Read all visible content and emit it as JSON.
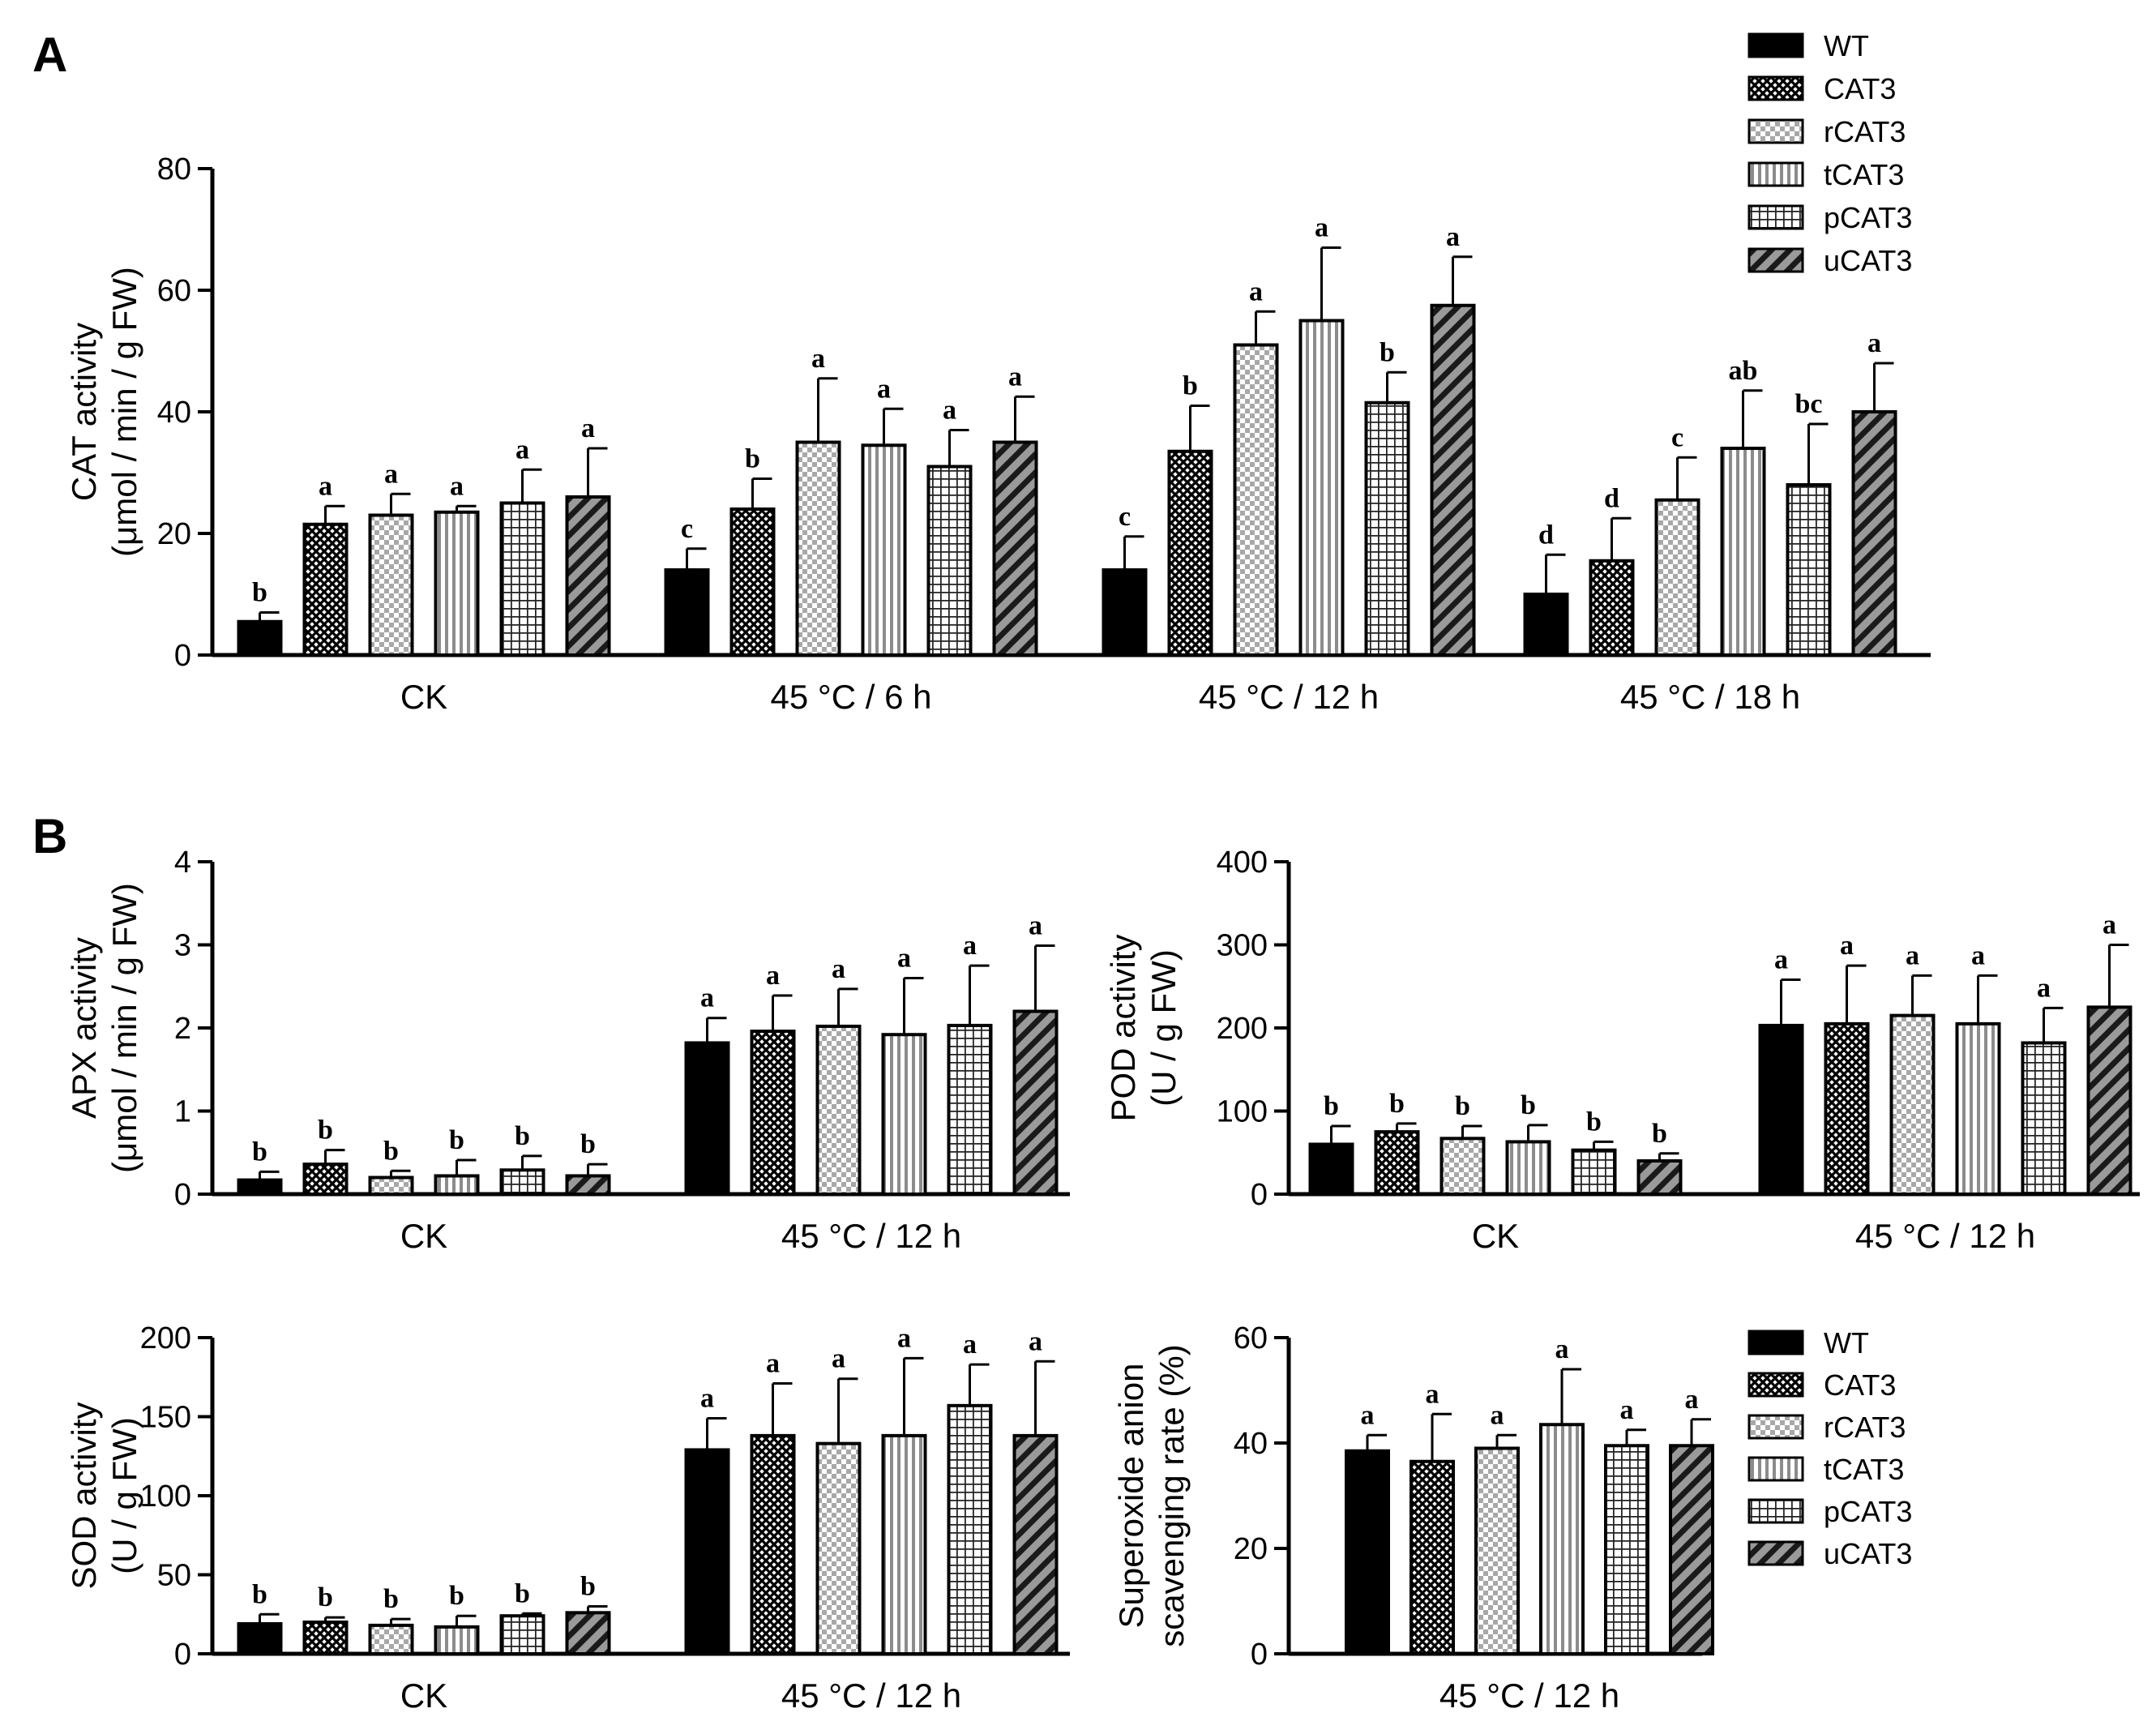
{
  "panel_labels": {
    "A": "A",
    "B": "B"
  },
  "legend": [
    "WT",
    "CAT3",
    "rCAT3",
    "tCAT3",
    "pCAT3",
    "uCAT3"
  ],
  "patterns": {
    "WT": "solid",
    "CAT3": "crosshatch",
    "rCAT3": "checker",
    "tCAT3": "vlines",
    "pCAT3": "grid",
    "uCAT3": "diag"
  },
  "colors": {
    "ink": "#000000",
    "light": "#bfbfbf",
    "mid": "#808080",
    "white": "#ffffff"
  },
  "chart_data": [
    {
      "id": "cat",
      "type": "bar",
      "panel": "A",
      "ylabel_line1": "CAT activity",
      "ylabel_line2": "(μmol / min / g FW)",
      "ylim": [
        0,
        80
      ],
      "yticks": [
        0,
        20,
        40,
        60,
        80
      ],
      "categories": [
        "CK",
        "45 °C / 6 h",
        "45 °C / 12 h",
        "45 °C / 18 h"
      ],
      "series": [
        {
          "name": "WT",
          "values": [
            5.5,
            14,
            14,
            10
          ],
          "errors": [
            1.5,
            3.5,
            5.5,
            6.5
          ],
          "letters": [
            "b",
            "c",
            "c",
            "d"
          ]
        },
        {
          "name": "CAT3",
          "values": [
            21.5,
            24,
            33.5,
            15.5
          ],
          "errors": [
            3,
            5,
            7.5,
            7
          ],
          "letters": [
            "a",
            "b",
            "b",
            "d"
          ]
        },
        {
          "name": "rCAT3",
          "values": [
            23,
            35,
            51,
            25.5
          ],
          "errors": [
            3.5,
            10.5,
            5.5,
            7
          ],
          "letters": [
            "a",
            "a",
            "a",
            "c"
          ]
        },
        {
          "name": "tCAT3",
          "values": [
            23.5,
            34.5,
            55,
            34
          ],
          "errors": [
            1,
            6,
            12,
            9.5
          ],
          "letters": [
            "a",
            "a",
            "a",
            "ab"
          ]
        },
        {
          "name": "pCAT3",
          "values": [
            25,
            31,
            41.5,
            28
          ],
          "errors": [
            5.5,
            6,
            5,
            10
          ],
          "letters": [
            "a",
            "a",
            "b",
            "bc"
          ]
        },
        {
          "name": "uCAT3",
          "values": [
            26,
            35,
            57.5,
            40
          ],
          "errors": [
            8,
            7.5,
            8,
            8
          ],
          "letters": [
            "a",
            "a",
            "a",
            "a"
          ]
        }
      ]
    },
    {
      "id": "apx",
      "type": "bar",
      "panel": "B",
      "ylabel_line1": "APX activity",
      "ylabel_line2": "(μmol / min / g FW)",
      "ylim": [
        0,
        4
      ],
      "yticks": [
        0,
        1,
        2,
        3,
        4
      ],
      "categories": [
        "CK",
        "45 °C / 12 h"
      ],
      "series": [
        {
          "name": "WT",
          "values": [
            0.17,
            1.82
          ],
          "errors": [
            0.1,
            0.3
          ],
          "letters": [
            "b",
            "a"
          ]
        },
        {
          "name": "CAT3",
          "values": [
            0.36,
            1.96
          ],
          "errors": [
            0.17,
            0.43
          ],
          "letters": [
            "b",
            "a"
          ]
        },
        {
          "name": "rCAT3",
          "values": [
            0.2,
            2.02
          ],
          "errors": [
            0.08,
            0.45
          ],
          "letters": [
            "b",
            "a"
          ]
        },
        {
          "name": "tCAT3",
          "values": [
            0.22,
            1.92
          ],
          "errors": [
            0.19,
            0.68
          ],
          "letters": [
            "b",
            "a"
          ]
        },
        {
          "name": "pCAT3",
          "values": [
            0.29,
            2.03
          ],
          "errors": [
            0.17,
            0.72
          ],
          "letters": [
            "b",
            "a"
          ]
        },
        {
          "name": "uCAT3",
          "values": [
            0.22,
            2.2
          ],
          "errors": [
            0.14,
            0.79
          ],
          "letters": [
            "b",
            "a"
          ]
        }
      ]
    },
    {
      "id": "pod",
      "type": "bar",
      "panel": "B",
      "ylabel_line1": "POD activity",
      "ylabel_line2": "(U / g FW)",
      "ylim": [
        0,
        400
      ],
      "yticks": [
        0,
        100,
        200,
        300,
        400
      ],
      "categories": [
        "CK",
        "45 °C / 12 h"
      ],
      "series": [
        {
          "name": "WT",
          "values": [
            60,
            203
          ],
          "errors": [
            22,
            55
          ],
          "letters": [
            "b",
            "a"
          ]
        },
        {
          "name": "CAT3",
          "values": [
            75,
            205
          ],
          "errors": [
            10,
            70
          ],
          "letters": [
            "b",
            "a"
          ]
        },
        {
          "name": "rCAT3",
          "values": [
            67,
            215
          ],
          "errors": [
            15,
            48
          ],
          "letters": [
            "b",
            "a"
          ]
        },
        {
          "name": "tCAT3",
          "values": [
            63,
            205
          ],
          "errors": [
            20,
            58
          ],
          "letters": [
            "b",
            "a"
          ]
        },
        {
          "name": "pCAT3",
          "values": [
            53,
            182
          ],
          "errors": [
            10,
            42
          ],
          "letters": [
            "b",
            "a"
          ]
        },
        {
          "name": "uCAT3",
          "values": [
            40,
            225
          ],
          "errors": [
            9,
            75
          ],
          "letters": [
            "b",
            "a"
          ]
        }
      ]
    },
    {
      "id": "sod",
      "type": "bar",
      "panel": "B",
      "ylabel_line1": "SOD activity",
      "ylabel_line2": "(U / g FW)",
      "ylim": [
        0,
        200
      ],
      "yticks": [
        0,
        50,
        100,
        150,
        200
      ],
      "categories": [
        "CK",
        "45 °C / 12 h"
      ],
      "series": [
        {
          "name": "WT",
          "values": [
            19,
            129
          ],
          "errors": [
            6,
            20
          ],
          "letters": [
            "b",
            "a"
          ]
        },
        {
          "name": "CAT3",
          "values": [
            20,
            138
          ],
          "errors": [
            3,
            33
          ],
          "letters": [
            "b",
            "a"
          ]
        },
        {
          "name": "rCAT3",
          "values": [
            18,
            133
          ],
          "errors": [
            4,
            41
          ],
          "letters": [
            "b",
            "a"
          ]
        },
        {
          "name": "tCAT3",
          "values": [
            17,
            138
          ],
          "errors": [
            7,
            49
          ],
          "letters": [
            "b",
            "a"
          ]
        },
        {
          "name": "pCAT3",
          "values": [
            24,
            157
          ],
          "errors": [
            1.5,
            26
          ],
          "letters": [
            "b",
            "a"
          ]
        },
        {
          "name": "uCAT3",
          "values": [
            26,
            138
          ],
          "errors": [
            4,
            47
          ],
          "letters": [
            "b",
            "a"
          ]
        }
      ]
    },
    {
      "id": "superoxide",
      "type": "bar",
      "panel": "B",
      "ylabel_line1": "Superoxide anion",
      "ylabel_line2": "scavenging rate (%)",
      "ylim": [
        0,
        60
      ],
      "yticks": [
        0,
        20,
        40,
        60
      ],
      "categories": [
        "45 °C / 12 h"
      ],
      "series": [
        {
          "name": "WT",
          "values": [
            38.5
          ],
          "errors": [
            3
          ],
          "letters": [
            "a"
          ]
        },
        {
          "name": "CAT3",
          "values": [
            36.5
          ],
          "errors": [
            9
          ],
          "letters": [
            "a"
          ]
        },
        {
          "name": "rCAT3",
          "values": [
            39
          ],
          "errors": [
            2.5
          ],
          "letters": [
            "a"
          ]
        },
        {
          "name": "tCAT3",
          "values": [
            43.5
          ],
          "errors": [
            10.5
          ],
          "letters": [
            "a"
          ]
        },
        {
          "name": "pCAT3",
          "values": [
            39.5
          ],
          "errors": [
            3
          ],
          "letters": [
            "a"
          ]
        },
        {
          "name": "uCAT3",
          "values": [
            39.5
          ],
          "errors": [
            5
          ],
          "letters": [
            "a"
          ]
        }
      ]
    }
  ]
}
